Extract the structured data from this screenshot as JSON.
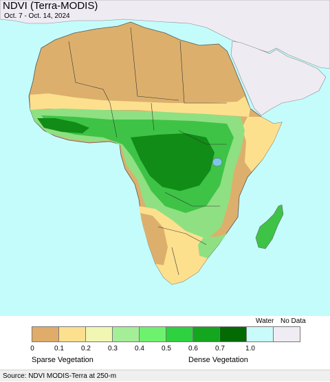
{
  "title": "NDVI (Terra-MODIS)",
  "subtitle": "Oct. 7 - Oct. 14, 2024",
  "legend": {
    "water_label": "Water",
    "nodata_label": "No Data",
    "ticks": [
      "0",
      "0.1",
      "0.2",
      "0.3",
      "0.4",
      "0.5",
      "0.6",
      "0.7",
      "1.0"
    ],
    "colors": [
      "#e0ac6a",
      "#fde08e",
      "#f1f7b2",
      "#a4ee98",
      "#6ef26e",
      "#2ed13f",
      "#14a61e",
      "#046a04"
    ],
    "water_color": "#c9fbfb",
    "nodata_color": "#f0ecf4",
    "left_caption": "Sparse Vegetation",
    "right_caption": "Dense Vegetation"
  },
  "source": "Source: NDVI MODIS-Terra at 250-m",
  "map_colors": {
    "ocean": "#c4fcfc",
    "outside_land": "#efebf3",
    "desert": "#dcb06c",
    "sahel": "#fde08e",
    "green_light": "#8fe082",
    "green_mid": "#3ec347",
    "green_dark": "#118c16",
    "lake": "#7fc6e6"
  }
}
